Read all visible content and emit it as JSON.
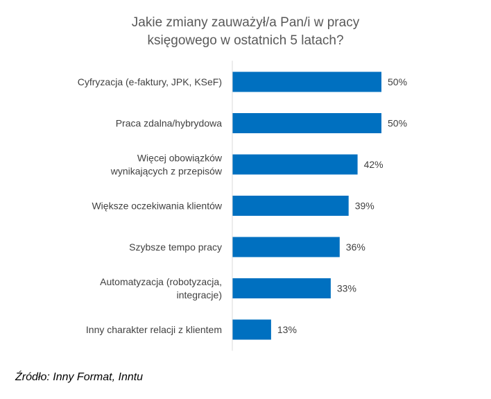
{
  "chart_data": {
    "type": "bar",
    "orientation": "horizontal",
    "title": [
      "Jakie zmiany zauważył/a Pan/i w pracy",
      "księgowego w ostatnich 5 latach?"
    ],
    "categories": [
      [
        "Cyfryzacja (e-faktury, JPK, KSeF)"
      ],
      [
        "Praca zdalna/hybrydowa"
      ],
      [
        "Więcej obowiązków",
        "wynikających z przepisów"
      ],
      [
        "Większe oczekiwania klientów"
      ],
      [
        "Szybsze tempo pracy"
      ],
      [
        "Automatyzacja (robotyzacja,",
        "integracje)"
      ],
      [
        "Inny charakter relacji z klientem"
      ]
    ],
    "values": [
      50,
      50,
      42,
      39,
      36,
      33,
      13
    ],
    "value_labels": [
      "50%",
      "50%",
      "42%",
      "39%",
      "36%",
      "33%",
      "13%"
    ],
    "unit": "%",
    "xlim": [
      0,
      50
    ],
    "bar_color": "#0070C0",
    "axis_color": "#D9D9D9",
    "grid": false,
    "legend": "none"
  },
  "source": "Źródło: Inny Format, Inntu"
}
